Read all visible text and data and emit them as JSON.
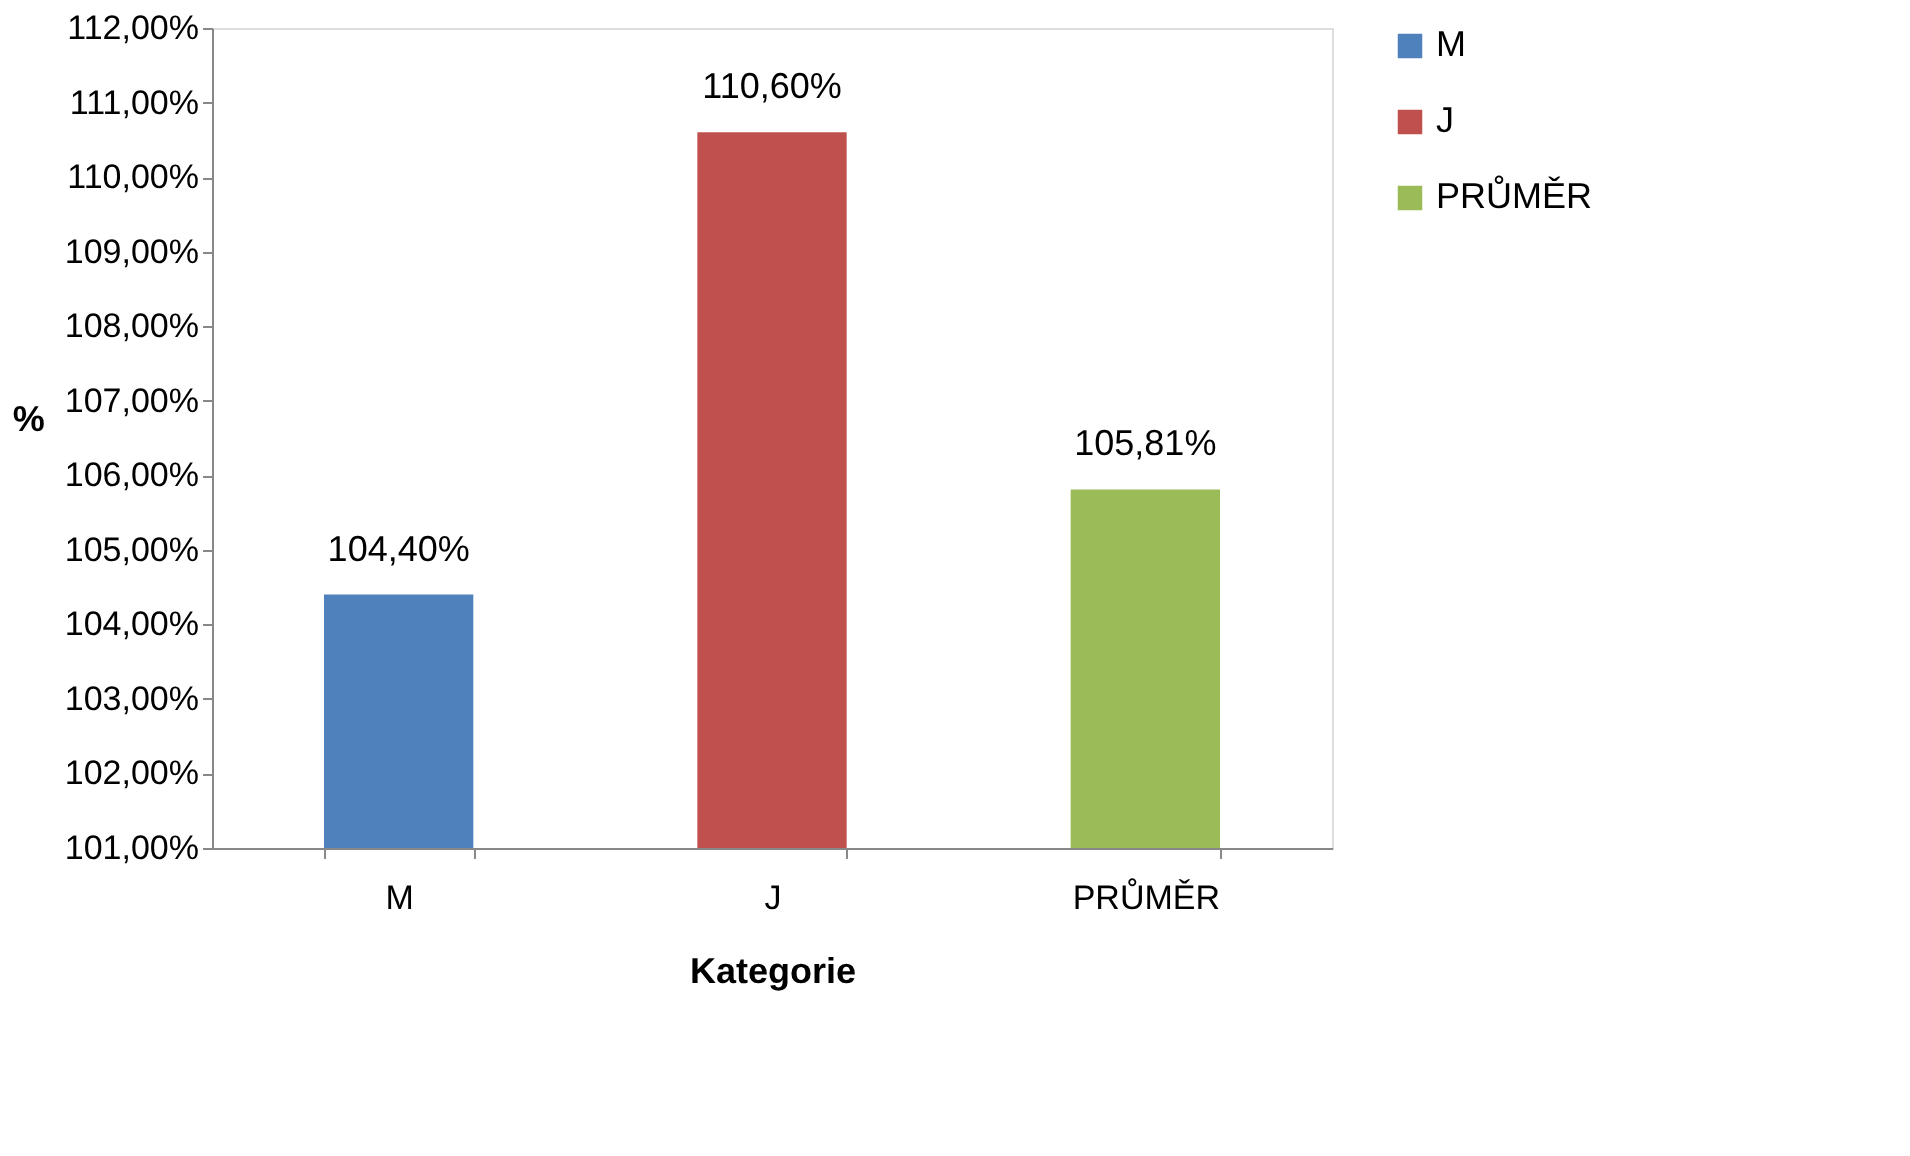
{
  "chart_data": {
    "type": "bar",
    "xlabel": "Kategorie",
    "ylabel": "%",
    "categories": [
      "M",
      "J",
      "PRŮMĚR"
    ],
    "series": [
      {
        "name": "M",
        "color": "#4f81bd",
        "values": [
          104.4,
          null,
          null
        ],
        "value_labels": [
          "104,40%",
          null,
          null
        ]
      },
      {
        "name": "J",
        "color": "#c0504d",
        "values": [
          null,
          110.6,
          null
        ],
        "value_labels": [
          null,
          "110,60%",
          null
        ]
      },
      {
        "name": "PRŮMĚR",
        "color": "#9bbb59",
        "values": [
          null,
          null,
          105.81
        ],
        "value_labels": [
          null,
          null,
          "105,81%"
        ]
      }
    ],
    "ylim": [
      101,
      112
    ],
    "yticks": [
      {
        "value": 101,
        "label": "101,00%"
      },
      {
        "value": 102,
        "label": "102,00%"
      },
      {
        "value": 103,
        "label": "103,00%"
      },
      {
        "value": 104,
        "label": "104,00%"
      },
      {
        "value": 105,
        "label": "105,00%"
      },
      {
        "value": 106,
        "label": "106,00%"
      },
      {
        "value": 107,
        "label": "107,00%"
      },
      {
        "value": 108,
        "label": "108,00%"
      },
      {
        "value": 109,
        "label": "109,00%"
      },
      {
        "value": 110,
        "label": "110,00%"
      },
      {
        "value": 111,
        "label": "111,00%"
      },
      {
        "value": 112,
        "label": "112,00%"
      }
    ],
    "grid": false,
    "legend": "right"
  }
}
